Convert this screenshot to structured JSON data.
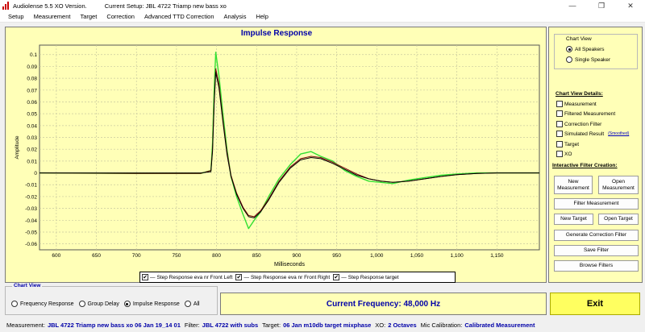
{
  "window": {
    "title_left": "Audiolense 5.5 XO Version.",
    "title_setup": "Current Setup: JBL 4722 Triamp new bass xo",
    "controls": [
      "—",
      "❐",
      "✕"
    ]
  },
  "menu": [
    "Setup",
    "Measurement",
    "Target",
    "Correction",
    "Advanced TTD Correction",
    "Analysis",
    "Help"
  ],
  "chart_data": {
    "type": "line",
    "title": "Impulse Response",
    "xlabel": "Milliseconds",
    "ylabel": "Amplitude",
    "xlim": [
      579,
      1203
    ],
    "ylim": [
      -0.065,
      0.108
    ],
    "xticks": [
      600,
      650,
      700,
      750,
      800,
      850,
      900,
      950,
      1000,
      1050,
      1100,
      1150
    ],
    "xtick_labels": [
      "600",
      "650",
      "700",
      "750",
      "800",
      "850",
      "900",
      "950",
      "1,000",
      "1,050",
      "1,100",
      "1,150"
    ],
    "yticks": [
      0.1,
      0.09,
      0.08,
      0.07,
      0.06,
      0.05,
      0.04,
      0.03,
      0.02,
      0.01,
      0,
      -0.01,
      -0.02,
      -0.03,
      -0.04,
      -0.05,
      -0.06
    ],
    "ytick_labels": [
      "0.1",
      "0.09",
      "0.08",
      "0.07",
      "0.06",
      "0.05",
      "0.04",
      "0.03",
      "0.02",
      "0.01",
      "0",
      "-0.01",
      "-0.02",
      "-0.03",
      "-0.04",
      "-0.05",
      "-0.06"
    ],
    "grid": true,
    "legend_position": "bottom-center",
    "series": [
      {
        "name": "Step Response eva nr Front Left",
        "color": "#7a0a0a",
        "x": [
          579,
          700,
          780,
          793,
          795,
          797,
          799,
          803,
          808,
          813,
          818,
          825,
          833,
          840,
          847,
          855,
          865,
          878,
          892,
          905,
          918,
          930,
          945,
          960,
          975,
          990,
          1005,
          1020,
          1040,
          1060,
          1080,
          1100,
          1125,
          1150,
          1175,
          1203
        ],
        "y": [
          0,
          -0.0005,
          -0.0005,
          0.002,
          0.02,
          0.06,
          0.088,
          0.075,
          0.045,
          0.018,
          -0.002,
          -0.017,
          -0.029,
          -0.036,
          -0.037,
          -0.032,
          -0.022,
          -0.007,
          0.005,
          0.012,
          0.014,
          0.013,
          0.009,
          0.004,
          -0.001,
          -0.005,
          -0.007,
          -0.008,
          -0.007,
          -0.005,
          -0.003,
          -0.0015,
          -0.0005,
          0,
          0,
          0
        ]
      },
      {
        "name": "Step Response eva nr Front Right",
        "color": "#32e032",
        "x": [
          579,
          700,
          780,
          793,
          795,
          797,
          799,
          803,
          808,
          813,
          818,
          825,
          833,
          840,
          847,
          855,
          865,
          878,
          892,
          905,
          918,
          930,
          945,
          960,
          975,
          990,
          1005,
          1020,
          1040,
          1060,
          1080,
          1100,
          1125,
          1150,
          1175,
          1203
        ],
        "y": [
          0,
          -0.0005,
          -0.0005,
          0.002,
          0.025,
          0.07,
          0.102,
          0.082,
          0.05,
          0.02,
          -0.003,
          -0.02,
          -0.035,
          -0.047,
          -0.04,
          -0.033,
          -0.02,
          -0.005,
          0.007,
          0.016,
          0.018,
          0.014,
          0.01,
          0.002,
          -0.003,
          -0.007,
          -0.008,
          -0.009,
          -0.006,
          -0.004,
          -0.002,
          -0.001,
          0,
          0,
          0,
          0
        ]
      },
      {
        "name": "Step Response target",
        "color": "#000000",
        "x": [
          579,
          700,
          780,
          793,
          795,
          797,
          799,
          803,
          808,
          813,
          818,
          825,
          833,
          840,
          847,
          855,
          865,
          878,
          892,
          905,
          918,
          930,
          945,
          960,
          975,
          990,
          1005,
          1020,
          1040,
          1060,
          1080,
          1100,
          1125,
          1150,
          1175,
          1203
        ],
        "y": [
          0,
          0,
          0,
          0.001,
          0.018,
          0.058,
          0.085,
          0.072,
          0.043,
          0.016,
          -0.003,
          -0.018,
          -0.03,
          -0.037,
          -0.038,
          -0.033,
          -0.023,
          -0.008,
          0.004,
          0.011,
          0.013,
          0.012,
          0.008,
          0.003,
          -0.002,
          -0.005,
          -0.007,
          -0.008,
          -0.007,
          -0.005,
          -0.003,
          -0.0015,
          -0.0005,
          0,
          0,
          0
        ]
      }
    ]
  },
  "legend": [
    {
      "label": "Step Response eva nr Front Left",
      "checked": true
    },
    {
      "label": "Step Response eva nr Front Right",
      "checked": true
    },
    {
      "label": "Step Response target",
      "checked": true
    }
  ],
  "side": {
    "chart_view_title": "Chart View",
    "views": [
      {
        "label": "All Speakers",
        "selected": true
      },
      {
        "label": "Single Speaker",
        "selected": false
      }
    ],
    "details_title": "Chart View Details:",
    "details": [
      {
        "label": "Measurement",
        "checked": false
      },
      {
        "label": "Filtered Measurement",
        "checked": false
      },
      {
        "label": "Correction Filter",
        "checked": false
      },
      {
        "label": "Simulated Result",
        "checked": false
      },
      {
        "label": "Target",
        "checked": false
      },
      {
        "label": "XO",
        "checked": false
      }
    ],
    "smoothed_link": "(Smoothed)",
    "filter_title": "Interactive Filter Creation:",
    "buttons": {
      "new_measurement": "New Measurement",
      "open_measurement": "Open Measurement",
      "filter_measurement": "Filter Measurement",
      "new_target": "New Target",
      "open_target": "Open Target",
      "generate_correction_filter": "Generate Correction Filter",
      "save_filter": "Save Filter",
      "browse_filters": "Browse Filters"
    }
  },
  "bottom": {
    "chart_view_title": "Chart View",
    "options": [
      {
        "label": "Frequency Response",
        "selected": false
      },
      {
        "label": "Group Delay",
        "selected": false
      },
      {
        "label": "Impulse Response",
        "selected": true
      },
      {
        "label": "All",
        "selected": false
      }
    ],
    "current_frequency": "Current Frequency: 48,000 Hz",
    "exit_label": "Exit"
  },
  "status": {
    "measurement_label": "Measurement:",
    "measurement_value": "JBL 4722 Triamp new bass xo 06 Jan 19_14 01",
    "filter_label": "Filter:",
    "filter_value": "JBL 4722 with subs",
    "target_label": "Target:",
    "target_value": "06 Jan m10db target mixphase",
    "xo_label": "XO:",
    "xo_value": "2 Octaves",
    "mic_label": "Mic Calibration:",
    "mic_value": "Calibrated Measurement"
  }
}
